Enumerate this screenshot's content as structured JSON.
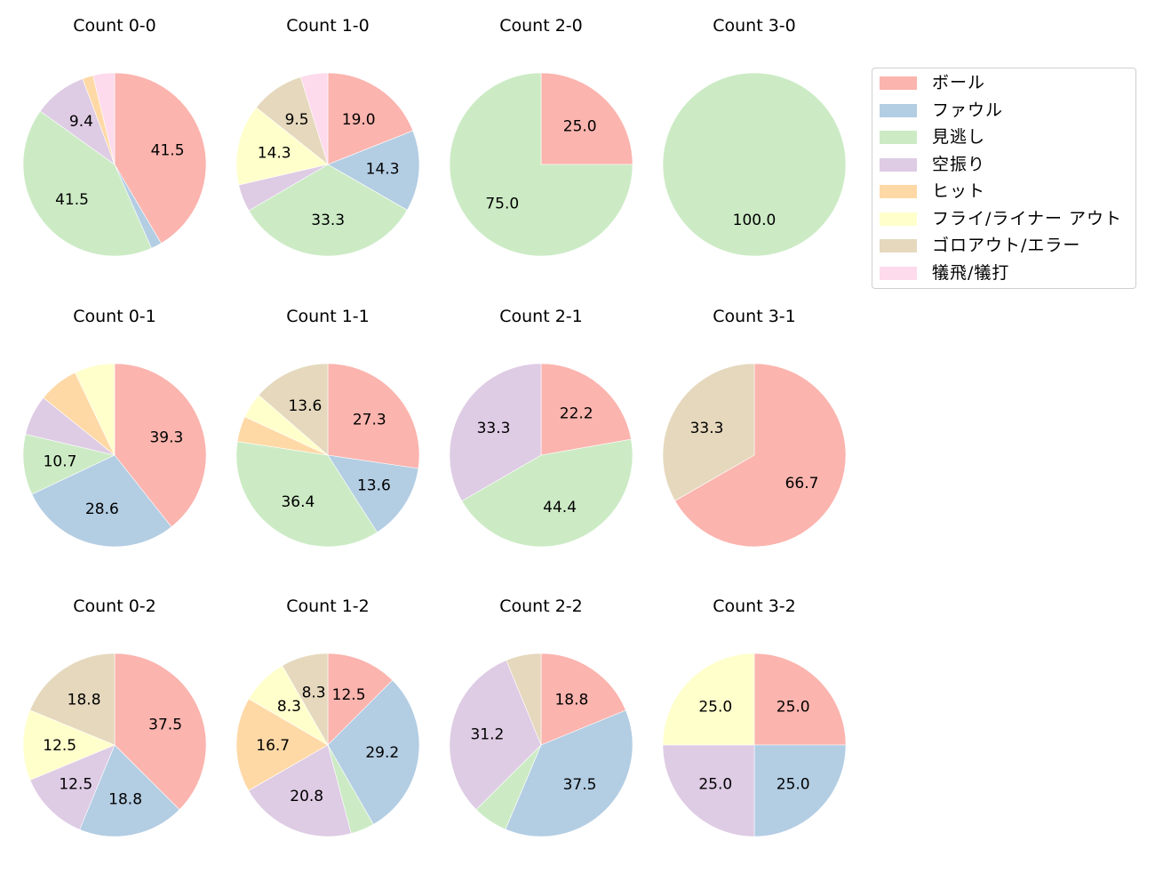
{
  "chart_data": {
    "type": "pie",
    "grid": {
      "rows": 3,
      "cols": 4
    },
    "legend": {
      "position": "upper right",
      "entries": [
        {
          "label": "ボール",
          "color": "#fbb4ae"
        },
        {
          "label": "ファウル",
          "color": "#b3cde3"
        },
        {
          "label": "見逃し",
          "color": "#ccebc5"
        },
        {
          "label": "空振り",
          "color": "#decbe4"
        },
        {
          "label": "ヒット",
          "color": "#fed9a6"
        },
        {
          "label": "フライ/ライナー アウト",
          "color": "#ffffcc"
        },
        {
          "label": "ゴロアウト/エラー",
          "color": "#e5d8bd"
        },
        {
          "label": "犠飛/犠打",
          "color": "#fddaec"
        }
      ]
    },
    "categories": [
      "ボール",
      "ファウル",
      "見逃し",
      "空振り",
      "ヒット",
      "フライ/ライナー アウト",
      "ゴロアウト/エラー",
      "犠飛/犠打"
    ],
    "charts": [
      {
        "title": "Count 0-0",
        "values": [
          41.5,
          1.9,
          41.5,
          9.4,
          1.9,
          0,
          0,
          3.8
        ],
        "labels_shown": [
          41.5,
          null,
          41.5,
          9.4,
          null,
          null,
          null,
          null
        ]
      },
      {
        "title": "Count 1-0",
        "values": [
          19.0,
          14.3,
          33.3,
          4.8,
          0,
          14.3,
          9.5,
          4.8
        ],
        "labels_shown": [
          19.0,
          14.3,
          33.3,
          null,
          null,
          14.3,
          9.5,
          null
        ]
      },
      {
        "title": "Count 2-0",
        "values": [
          25.0,
          0,
          75.0,
          0,
          0,
          0,
          0,
          0
        ],
        "labels_shown": [
          25.0,
          null,
          75.0,
          null,
          null,
          null,
          null,
          null
        ]
      },
      {
        "title": "Count 3-0",
        "values": [
          0,
          0,
          100.0,
          0,
          0,
          0,
          0,
          0
        ],
        "labels_shown": [
          null,
          null,
          100.0,
          null,
          null,
          null,
          null,
          null
        ]
      },
      {
        "title": "Count 0-1",
        "values": [
          39.3,
          28.6,
          10.7,
          7.1,
          7.1,
          7.1,
          0,
          0
        ],
        "labels_shown": [
          39.3,
          28.6,
          10.7,
          null,
          null,
          null,
          null,
          null
        ]
      },
      {
        "title": "Count 1-1",
        "values": [
          27.3,
          13.6,
          36.4,
          0,
          4.5,
          4.5,
          13.6,
          0
        ],
        "labels_shown": [
          27.3,
          13.6,
          36.4,
          null,
          null,
          null,
          13.6,
          null
        ]
      },
      {
        "title": "Count 2-1",
        "values": [
          22.2,
          0,
          44.4,
          33.3,
          0,
          0,
          0,
          0
        ],
        "labels_shown": [
          22.2,
          null,
          44.4,
          33.3,
          null,
          null,
          null,
          null
        ]
      },
      {
        "title": "Count 3-1",
        "values": [
          66.7,
          0,
          0,
          0,
          0,
          0,
          33.3,
          0
        ],
        "labels_shown": [
          66.7,
          null,
          null,
          null,
          null,
          null,
          33.3,
          null
        ]
      },
      {
        "title": "Count 0-2",
        "values": [
          37.5,
          18.8,
          0,
          12.5,
          0,
          12.5,
          18.8,
          0
        ],
        "labels_shown": [
          37.5,
          18.8,
          null,
          12.5,
          null,
          12.5,
          18.8,
          null
        ]
      },
      {
        "title": "Count 1-2",
        "values": [
          12.5,
          29.2,
          4.2,
          20.8,
          16.7,
          8.3,
          8.3,
          0
        ],
        "labels_shown": [
          12.5,
          29.2,
          null,
          20.8,
          16.7,
          8.3,
          8.3,
          null
        ]
      },
      {
        "title": "Count 2-2",
        "values": [
          18.8,
          37.5,
          6.2,
          31.2,
          0,
          0,
          6.2,
          0
        ],
        "labels_shown": [
          18.8,
          37.5,
          null,
          31.2,
          null,
          null,
          null,
          null
        ]
      },
      {
        "title": "Count 3-2",
        "values": [
          25.0,
          25.0,
          0,
          25.0,
          0,
          25.0,
          0,
          0
        ],
        "labels_shown": [
          25.0,
          25.0,
          null,
          25.0,
          null,
          25.0,
          null,
          null
        ]
      }
    ],
    "start_angle_deg": 90,
    "direction": "clockwise",
    "label_threshold_pct": 8,
    "label_format": "%.1f"
  }
}
